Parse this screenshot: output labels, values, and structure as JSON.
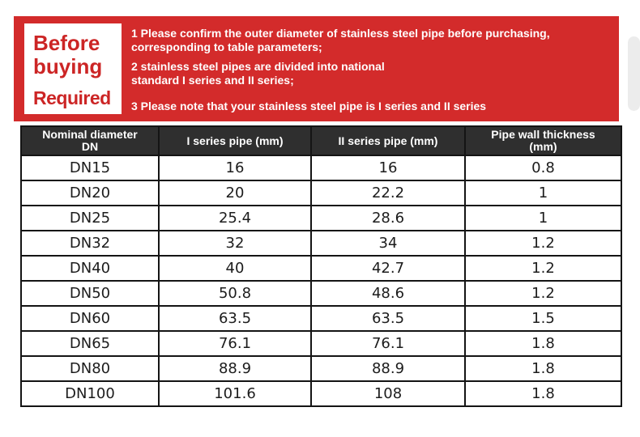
{
  "banner": {
    "badge_title": "Before buying",
    "badge_subtitle": "Required",
    "notes": [
      "1 Please confirm the outer diameter of stainless steel pipe before purchasing,\ncorresponding to table parameters;",
      "2 stainless steel pipes are divided into national\nstandard I series and II series;",
      "3 Please note that your stainless steel pipe is I series and II series"
    ]
  },
  "table": {
    "headers": [
      "Nominal diameter\nDN",
      "I series pipe (mm)",
      "II series pipe (mm)",
      "Pipe wall thickness\n(mm)"
    ],
    "rows": [
      [
        "DN15",
        "16",
        "16",
        "0.8"
      ],
      [
        "DN20",
        "20",
        "22.2",
        "1"
      ],
      [
        "DN25",
        "25.4",
        "28.6",
        "1"
      ],
      [
        "DN32",
        "32",
        "34",
        "1.2"
      ],
      [
        "DN40",
        "40",
        "42.7",
        "1.2"
      ],
      [
        "DN50",
        "50.8",
        "48.6",
        "1.2"
      ],
      [
        "DN60",
        "63.5",
        "63.5",
        "1.5"
      ],
      [
        "DN65",
        "76.1",
        "76.1",
        "1.8"
      ],
      [
        "DN80",
        "88.9",
        "88.9",
        "1.8"
      ],
      [
        "DN100",
        "101.6",
        "108",
        "1.8"
      ]
    ]
  },
  "colors": {
    "banner_red": "#d32b2b",
    "badge_bg": "#ffffff",
    "badge_text": "#cc2525",
    "banner_text": "#ffffff",
    "header_bg": "#2f2f2f",
    "header_text": "#ffffff",
    "table_border": "#141414",
    "cell_text": "#1c1c1c",
    "page_bg": "#ffffff"
  }
}
